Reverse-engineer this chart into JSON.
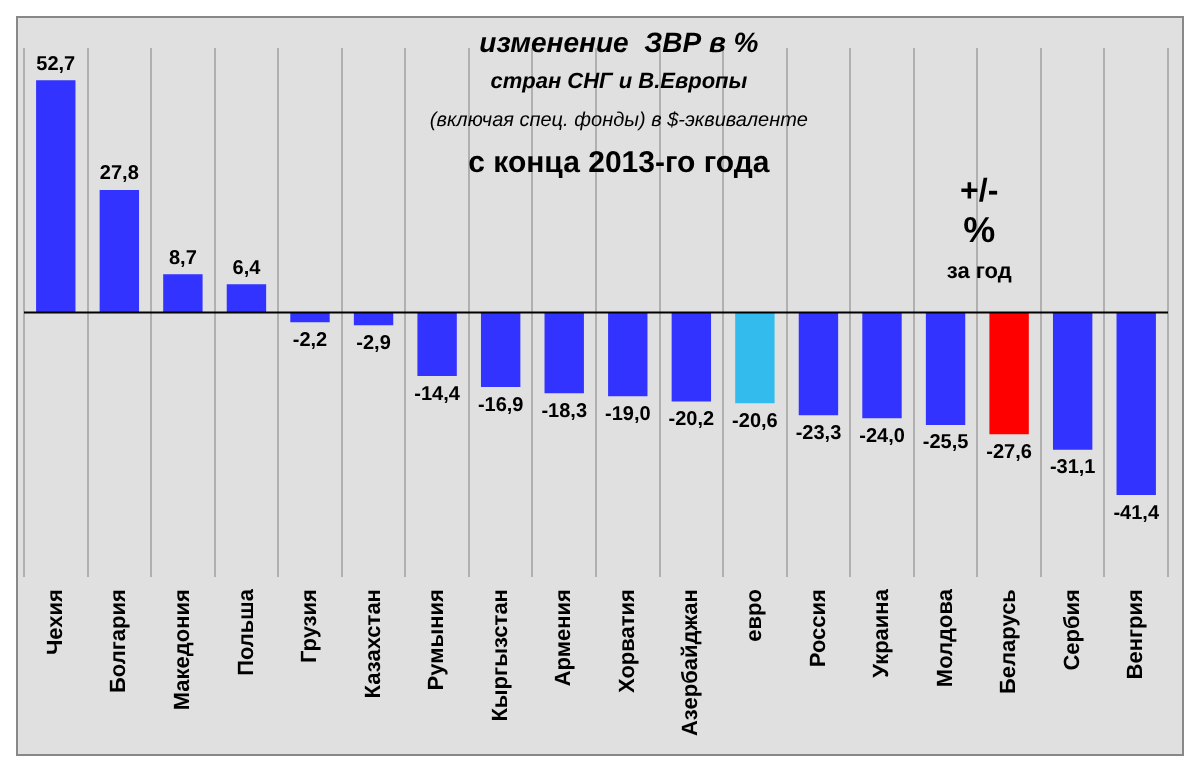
{
  "chart_data": {
    "type": "bar",
    "title": "изменение  ЗВР в %\nстран СНГ и В.Европы\n(включая спец. фонды) в $-эквиваленте\nс конца 2013-го года",
    "categories": [
      "Чехия",
      "Болгария",
      "Македония",
      "Польша",
      "Грузия",
      "Казахстан",
      "Румыния",
      "Кыргызстан",
      "Армения",
      "Хорватия",
      "Азербайджан",
      "евро",
      "Россия",
      "Украина",
      "Молдова",
      "Беларусь",
      "Сербия",
      "Венгрия"
    ],
    "values": [
      52.7,
      27.8,
      8.7,
      6.4,
      -2.2,
      -2.9,
      -14.4,
      -16.9,
      -18.3,
      -19.0,
      -20.2,
      -20.6,
      -23.3,
      -24.0,
      -25.5,
      -27.6,
      -31.1,
      -41.4
    ],
    "value_labels": [
      "52,7",
      "27,8",
      "8,7",
      "6,4",
      "-2,2",
      "-2,9",
      "-14,4",
      "-16,9",
      "-18,3",
      "-19,0",
      "-20,2",
      "-20,6",
      "-23,3",
      "-24,0",
      "-25,5",
      "-27,6",
      "-31,1",
      "-41,4"
    ],
    "colors": [
      "#3333ff",
      "#3333ff",
      "#3333ff",
      "#3333ff",
      "#3333ff",
      "#3333ff",
      "#3333ff",
      "#3333ff",
      "#3333ff",
      "#3333ff",
      "#3333ff",
      "#33bbee",
      "#3333ff",
      "#3333ff",
      "#3333ff",
      "#ff0000",
      "#3333ff",
      "#3333ff"
    ],
    "annotations": [
      "+/-\n%\nза год"
    ],
    "grid": "x",
    "legend": false
  }
}
